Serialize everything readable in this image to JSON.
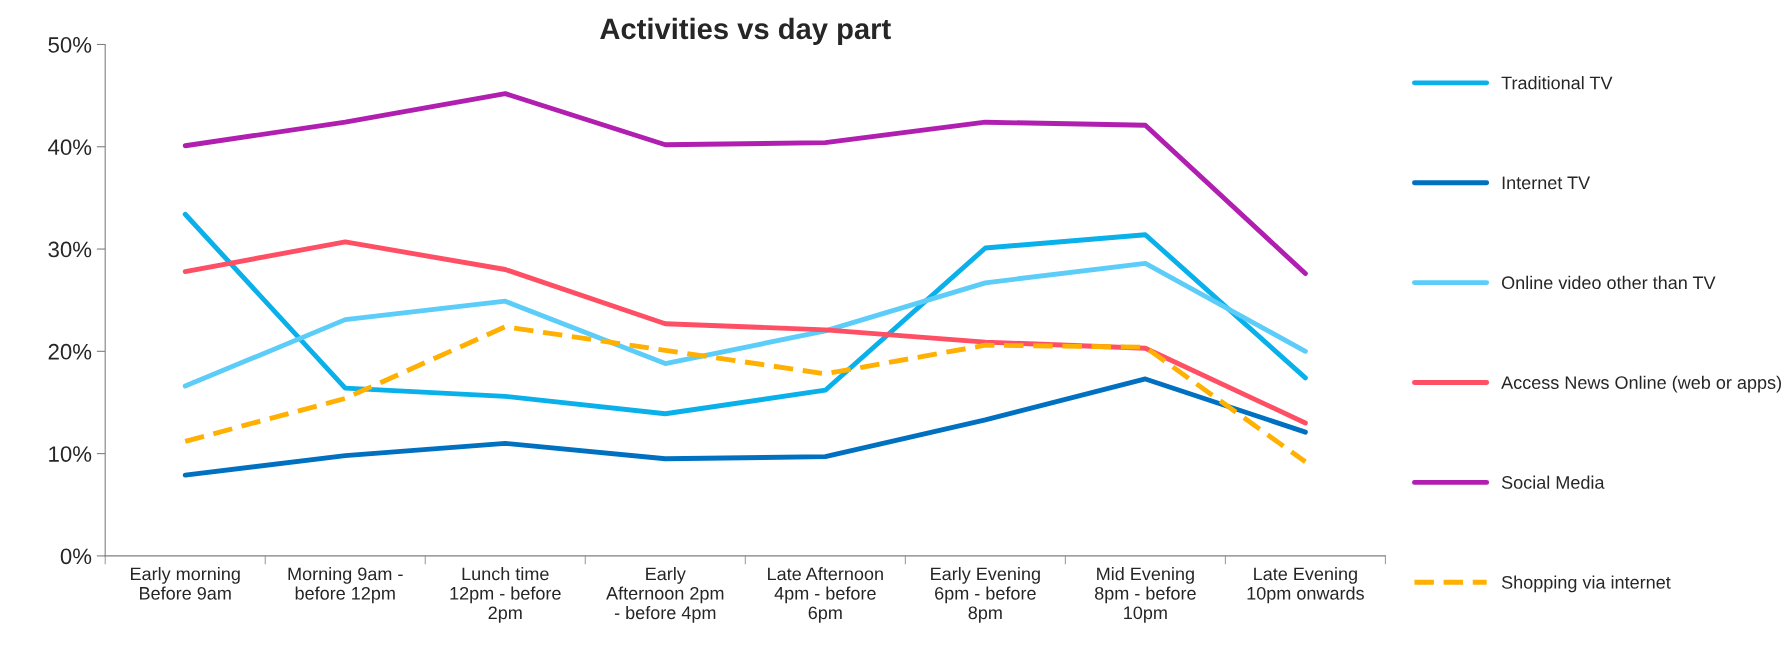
{
  "chart_data": {
    "type": "line",
    "title": "Activities vs day part",
    "categories": [
      "Early morning Before 9am",
      "Morning 9am - before 12pm",
      "Lunch time 12pm - before 2pm",
      "Early Afternoon 2pm - before 4pm",
      "Late Afternoon 4pm - before 6pm",
      "Early Evening 6pm - before 8pm",
      "Mid Evening 8pm - before 10pm",
      "Late Evening 10pm onwards"
    ],
    "series": [
      {
        "name": "Traditional TV",
        "color": "#0ab0ea",
        "values": [
          33.4,
          16.4,
          15.6,
          13.9,
          16.2,
          30.1,
          31.4,
          17.4
        ]
      },
      {
        "name": "Internet TV",
        "color": "#0070c0",
        "values": [
          7.9,
          9.8,
          11.0,
          9.5,
          9.7,
          13.3,
          17.3,
          12.1
        ]
      },
      {
        "name": "Online video other than TV",
        "color": "#5bcdf8",
        "values": [
          16.6,
          23.1,
          24.9,
          18.8,
          22.0,
          26.7,
          28.6,
          20.0
        ]
      },
      {
        "name": "Access News Online (web or apps)",
        "color": "#ff4f64",
        "values": [
          27.8,
          30.7,
          28.0,
          22.7,
          22.1,
          20.9,
          20.3,
          13.0
        ]
      },
      {
        "name": "Social Media",
        "color": "#b01fb0",
        "values": [
          40.1,
          42.4,
          45.2,
          40.2,
          40.4,
          42.4,
          42.1,
          27.6
        ]
      },
      {
        "name": "Shopping via internet",
        "color": "#ffb000",
        "line_style": "dashed",
        "values": [
          11.2,
          15.4,
          22.4,
          20.1,
          17.8,
          20.6,
          20.4,
          9.2
        ]
      }
    ],
    "ylim": [
      0,
      50
    ],
    "yticks": [
      {
        "value": 0,
        "label": "0%"
      },
      {
        "value": 10,
        "label": "10%"
      },
      {
        "value": 20,
        "label": "20%"
      },
      {
        "value": 30,
        "label": "30%"
      },
      {
        "value": 40,
        "label": "40%"
      },
      {
        "value": 50,
        "label": "50%"
      }
    ],
    "grid": false,
    "legend": "right",
    "marker": "none",
    "line_style": "solid"
  }
}
